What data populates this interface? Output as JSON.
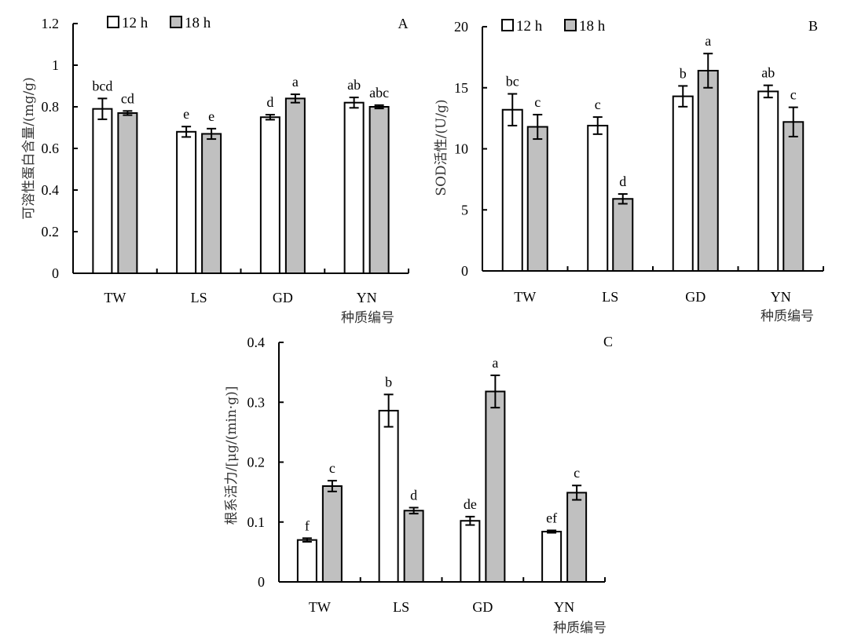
{
  "legend": {
    "series": [
      {
        "name": "12 h",
        "color": "#ffffff"
      },
      {
        "name": "18 h",
        "color": "#c0c0c0"
      }
    ]
  },
  "chart_data": [
    {
      "type": "bar",
      "panel": "A",
      "title": "",
      "xlabel": "种质编号",
      "ylabel": "可溶性蛋白含量/(mg/g)",
      "categories": [
        "TW",
        "LS",
        "GD",
        "YN"
      ],
      "ylim": [
        0,
        1.2
      ],
      "yticks": [
        0,
        0.2,
        0.4,
        0.6,
        0.8,
        1,
        1.2
      ],
      "ytick_labels": [
        "0",
        "0.2",
        "0.4",
        "0.6",
        "0.8",
        "1",
        "1.2"
      ],
      "legend_position": "top-left",
      "grid": false,
      "series": [
        {
          "name": "12 h",
          "values": [
            0.79,
            0.68,
            0.75,
            0.82
          ],
          "errors": [
            0.05,
            0.025,
            0.012,
            0.025
          ],
          "labels": [
            "bcd",
            "e",
            "d",
            "ab"
          ]
        },
        {
          "name": "18 h",
          "values": [
            0.77,
            0.67,
            0.84,
            0.8
          ],
          "errors": [
            0.01,
            0.025,
            0.02,
            0.008
          ],
          "labels": [
            "cd",
            "e",
            "a",
            "abc"
          ]
        }
      ]
    },
    {
      "type": "bar",
      "panel": "B",
      "title": "",
      "xlabel": "种质编号",
      "ylabel": "SOD活性/(U/g)",
      "categories": [
        "TW",
        "LS",
        "GD",
        "YN"
      ],
      "ylim": [
        0,
        20
      ],
      "yticks": [
        0,
        5,
        10,
        15,
        20
      ],
      "ytick_labels": [
        "0",
        "5",
        "10",
        "15",
        "20"
      ],
      "legend_position": "top-left",
      "grid": false,
      "series": [
        {
          "name": "12 h",
          "values": [
            13.2,
            11.9,
            14.3,
            14.7
          ],
          "errors": [
            1.3,
            0.7,
            0.85,
            0.5
          ],
          "labels": [
            "bc",
            "c",
            "b",
            "ab"
          ]
        },
        {
          "name": "18 h",
          "values": [
            11.8,
            5.9,
            16.4,
            12.2
          ],
          "errors": [
            1.0,
            0.4,
            1.4,
            1.2
          ],
          "labels": [
            "c",
            "d",
            "a",
            "c"
          ]
        }
      ]
    },
    {
      "type": "bar",
      "panel": "C",
      "title": "",
      "xlabel": "种质编号",
      "ylabel": "根系活力/[μg/(min·g)]",
      "categories": [
        "TW",
        "LS",
        "GD",
        "YN"
      ],
      "ylim": [
        0,
        0.4
      ],
      "yticks": [
        0,
        0.1,
        0.2,
        0.3,
        0.4
      ],
      "ytick_labels": [
        "0",
        "0.1",
        "0.2",
        "0.3",
        "0.4"
      ],
      "legend_position": "none",
      "grid": false,
      "series": [
        {
          "name": "12 h",
          "values": [
            0.07,
            0.286,
            0.102,
            0.084
          ],
          "errors": [
            0.003,
            0.027,
            0.007,
            0.002
          ],
          "labels": [
            "f",
            "b",
            "de",
            "ef"
          ]
        },
        {
          "name": "18 h",
          "values": [
            0.16,
            0.119,
            0.318,
            0.149
          ],
          "errors": [
            0.009,
            0.005,
            0.027,
            0.012
          ],
          "labels": [
            "c",
            "d",
            "a",
            "c"
          ]
        }
      ]
    }
  ]
}
